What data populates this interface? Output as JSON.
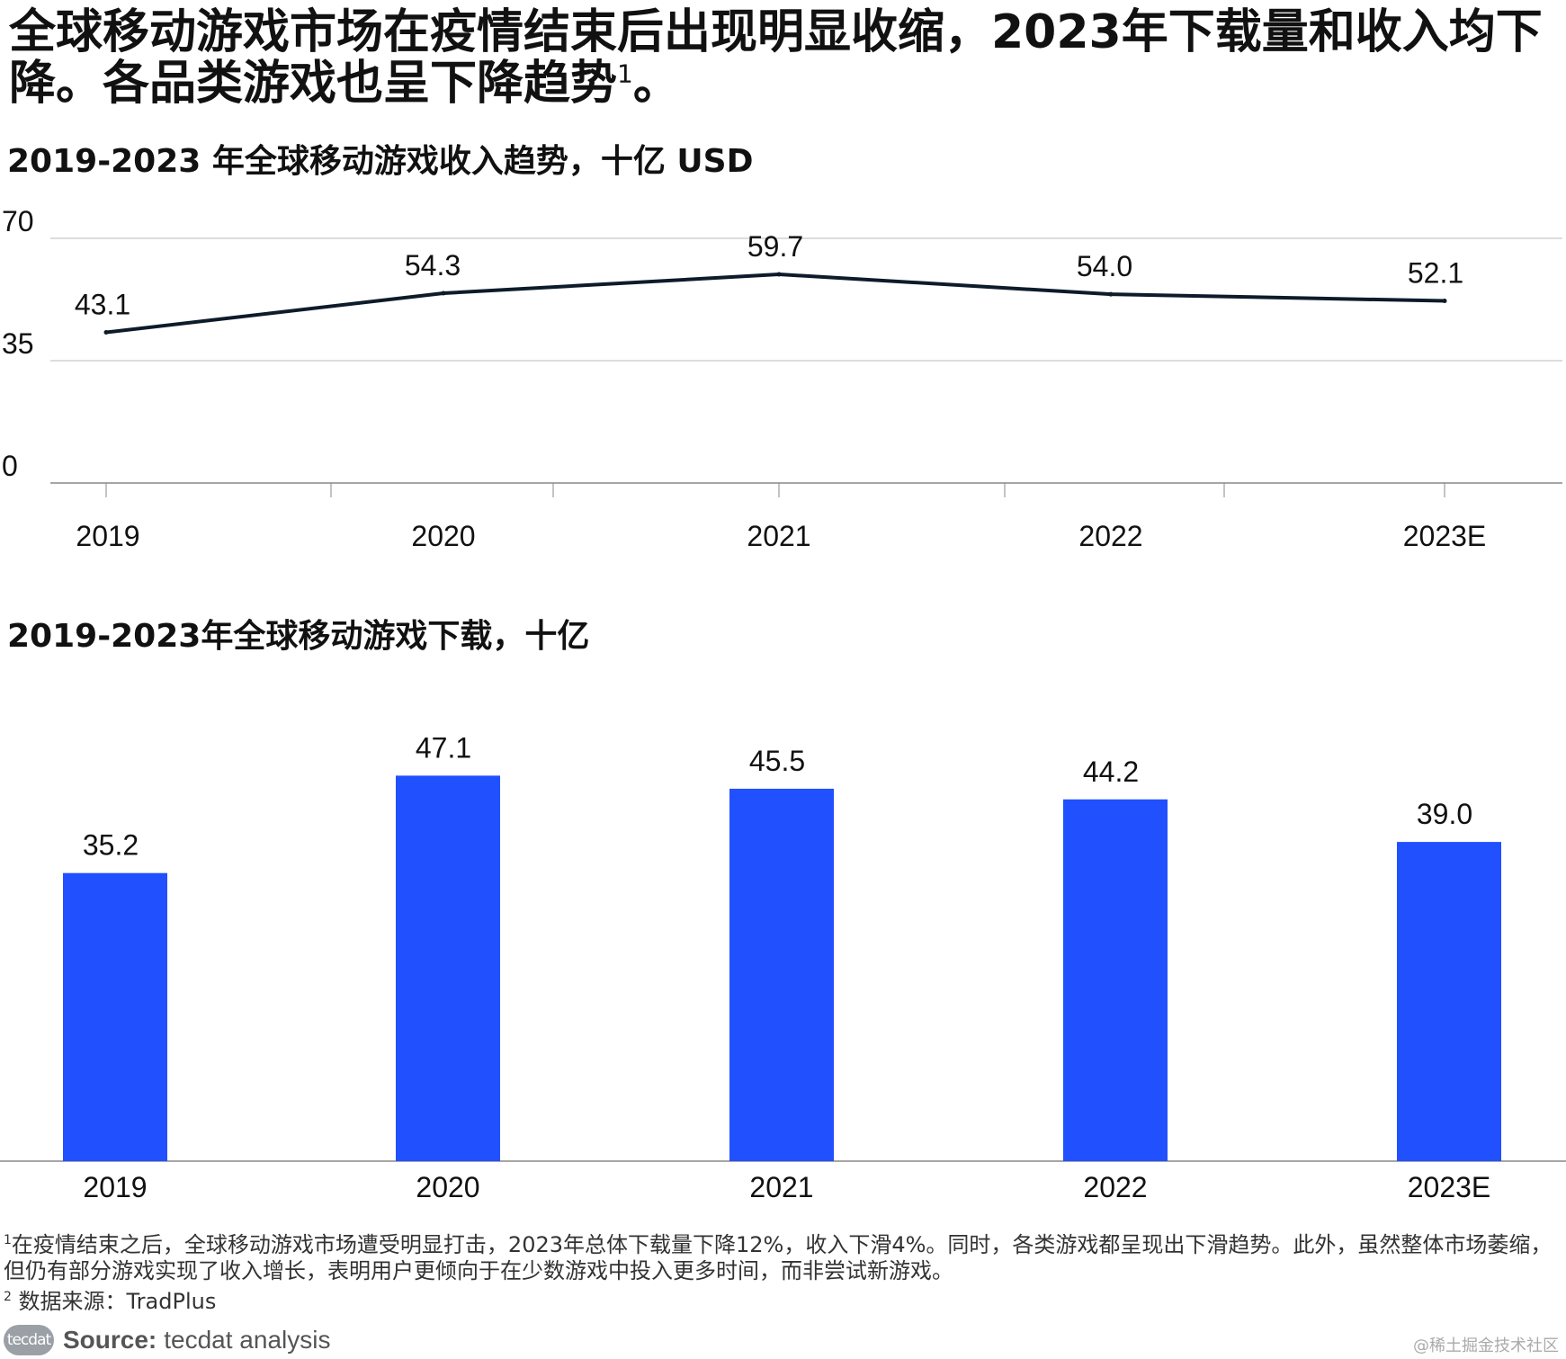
{
  "headline": {
    "text": "全球移动游戏市场在疫情结束后出现明显收缩，2023年下载量和收入均下降。各品类游戏也呈下降趋势",
    "sup": "1",
    "end": "。"
  },
  "colors": {
    "bar": "#2150FF",
    "line": "#0D1B2A",
    "grid": "#BBBBBB",
    "axis": "#888888"
  },
  "chart_data": [
    {
      "type": "line",
      "title_bold": "2019-2023",
      "title_rest": " 年全球移动游戏收入趋势，十亿 USD",
      "categories": [
        "2019",
        "2020",
        "2021",
        "2022",
        "2023E"
      ],
      "values": [
        43.1,
        54.3,
        59.7,
        54.0,
        52.1
      ],
      "value_labels": [
        "43.1",
        "54.3",
        "59.7",
        "54.0",
        "52.1"
      ],
      "ylim": [
        0,
        70
      ],
      "yticks": [
        "0",
        "35",
        "70"
      ],
      "xlabel": "",
      "ylabel": ""
    },
    {
      "type": "bar",
      "title_bold": "2019-2023",
      "title_rest": "年全球移动游戏下载，十亿",
      "categories": [
        "2019",
        "2020",
        "2021",
        "2022",
        "2023E"
      ],
      "values": [
        35.2,
        47.1,
        45.5,
        44.2,
        39.0
      ],
      "value_labels": [
        "35.2",
        "47.1",
        "45.5",
        "44.2",
        "39.0"
      ],
      "ylim": [
        0,
        50
      ],
      "xlabel": "",
      "ylabel": ""
    }
  ],
  "footnotes": {
    "note1_mark": "1",
    "note1": "在疫情结束之后，全球移动游戏市场遭受明显打击，2023年总体下载量下降12%，收入下滑4%。同时，各类游戏都呈现出下滑趋势。此外，虽然整体市场萎缩，但仍有部分游戏实现了收入增长，表明用户更倾向于在少数游戏中投入更多时间，而非尝试新游戏。",
    "note2_mark": "2",
    "note2": " 数据来源：TradPlus"
  },
  "source": {
    "logo": "tecdat",
    "label": "Source:",
    "text": "tecdat analysis"
  },
  "watermark": "@稀土掘金技术社区"
}
